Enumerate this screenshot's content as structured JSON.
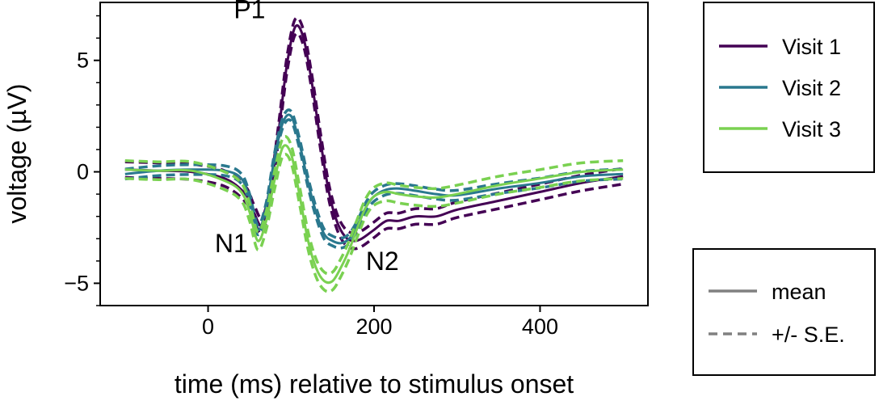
{
  "chart_data": {
    "type": "line",
    "xlabel": "time (ms) relative to stimulus onset",
    "ylabel": "voltage (µV)",
    "xlim": [
      -130,
      530
    ],
    "ylim": [
      -6.0,
      7.6
    ],
    "xticks": [
      0,
      200,
      400
    ],
    "xtick_labels": [
      "0",
      "200",
      "400"
    ],
    "yticks": [
      -5,
      0,
      5
    ],
    "ytick_labels": [
      "−5",
      "0",
      "5"
    ],
    "y_minor_step": 1,
    "grid": false,
    "annotations": [
      {
        "text": "P1",
        "x": 50,
        "y": 6.9
      },
      {
        "text": "N1",
        "x": 28,
        "y": -3.6
      },
      {
        "text": "N2",
        "x": 210,
        "y": -4.4
      }
    ],
    "series": [
      {
        "name": "Visit 1",
        "color": "#440154",
        "x": [
          -100,
          -60,
          -20,
          20,
          45,
          55,
          65,
          75,
          85,
          95,
          105,
          115,
          125,
          135,
          145,
          155,
          165,
          175,
          185,
          200,
          215,
          230,
          250,
          275,
          300,
          350,
          400,
          450,
          500
        ],
        "mean": [
          0.1,
          0.05,
          0.0,
          -0.3,
          -1.0,
          -1.8,
          -2.4,
          -1.0,
          1.8,
          4.8,
          6.5,
          6.0,
          4.0,
          1.5,
          -0.8,
          -2.2,
          -2.9,
          -3.1,
          -3.0,
          -2.6,
          -2.2,
          -2.2,
          -2.0,
          -2.0,
          -1.7,
          -1.3,
          -0.9,
          -0.5,
          -0.2
        ],
        "se": 0.35
      },
      {
        "name": "Visit 2",
        "color": "#2A788E",
        "x": [
          -100,
          -60,
          -20,
          20,
          40,
          50,
          60,
          70,
          80,
          90,
          100,
          110,
          120,
          130,
          140,
          150,
          160,
          170,
          180,
          190,
          200,
          215,
          230,
          250,
          275,
          300,
          350,
          400,
          450,
          500
        ],
        "mean": [
          -0.1,
          0.05,
          0.1,
          0.05,
          -0.3,
          -1.2,
          -2.6,
          -1.6,
          0.6,
          2.2,
          2.5,
          1.3,
          -0.4,
          -1.8,
          -2.8,
          -3.1,
          -3.2,
          -3.0,
          -2.4,
          -1.6,
          -1.1,
          -0.8,
          -0.75,
          -0.85,
          -1.0,
          -1.05,
          -0.75,
          -0.5,
          -0.2,
          -0.1
        ],
        "se": 0.22
      },
      {
        "name": "Visit 3",
        "color": "#7AD151",
        "x": [
          -100,
          -60,
          -20,
          20,
          40,
          50,
          60,
          70,
          80,
          90,
          100,
          110,
          120,
          130,
          140,
          150,
          160,
          170,
          180,
          190,
          200,
          215,
          230,
          250,
          275,
          300,
          350,
          400,
          450,
          500
        ],
        "mean": [
          0.1,
          0.05,
          0.05,
          -0.4,
          -0.9,
          -1.8,
          -3.1,
          -2.2,
          -0.4,
          1.1,
          0.8,
          -1.0,
          -3.0,
          -4.3,
          -4.9,
          -4.9,
          -4.3,
          -3.5,
          -2.5,
          -1.6,
          -1.1,
          -0.9,
          -1.0,
          -1.1,
          -1.15,
          -1.0,
          -0.6,
          -0.3,
          0.0,
          0.1
        ],
        "se": 0.4
      }
    ],
    "legend": {
      "placement": "right",
      "entries": [
        "Visit 1",
        "Visit 2",
        "Visit 3"
      ]
    },
    "style_legend": {
      "placement": "lower-right",
      "color": "#808080",
      "entries": [
        {
          "label": "mean",
          "style": "solid"
        },
        {
          "label": "+/- S.E.",
          "style": "dashed"
        }
      ]
    }
  }
}
